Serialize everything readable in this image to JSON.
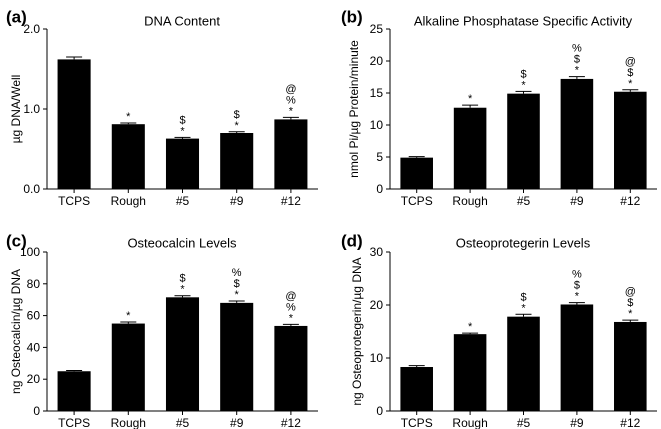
{
  "chart_data": [
    {
      "type": "bar",
      "panel_label": "(a)",
      "title": "DNA Content",
      "ylabel": "µg DNA/Well",
      "xlabel": "",
      "categories": [
        "TCPS",
        "Rough",
        "#5",
        "#9",
        "#12"
      ],
      "values": [
        1.62,
        0.81,
        0.63,
        0.7,
        0.87
      ],
      "errors": [
        0.03,
        0.015,
        0.015,
        0.015,
        0.025
      ],
      "ylim": [
        0,
        2.0
      ],
      "yticks": [
        "0.0",
        "1.0",
        "2.0"
      ],
      "ytick_values": [
        0,
        1,
        2
      ],
      "significance": [
        [],
        [
          "*"
        ],
        [
          "$",
          "*"
        ],
        [
          "$",
          "*"
        ],
        [
          "@",
          "%",
          "*"
        ]
      ]
    },
    {
      "type": "bar",
      "panel_label": "(b)",
      "title": "Alkaline Phosphatase Specific Activity",
      "ylabel": "nmol Pi/µg Protein/minute",
      "xlabel": "",
      "categories": [
        "TCPS",
        "Rough",
        "#5",
        "#9",
        "#12"
      ],
      "values": [
        4.9,
        12.7,
        14.9,
        17.2,
        15.2
      ],
      "errors": [
        0.15,
        0.4,
        0.35,
        0.35,
        0.3
      ],
      "ylim": [
        0,
        25
      ],
      "yticks": [
        "0",
        "5",
        "10",
        "15",
        "20",
        "25"
      ],
      "ytick_values": [
        0,
        5,
        10,
        15,
        20,
        25
      ],
      "significance": [
        [],
        [
          "*"
        ],
        [
          "$",
          "*"
        ],
        [
          "%",
          "$",
          "*"
        ],
        [
          "@",
          "$",
          "*"
        ]
      ]
    },
    {
      "type": "bar",
      "panel_label": "(c)",
      "title": "Osteocalcin Levels",
      "ylabel": "ng Osteocalcin/µg DNA",
      "xlabel": "",
      "categories": [
        "TCPS",
        "Rough",
        "#5",
        "#9",
        "#12"
      ],
      "values": [
        25,
        55,
        71.5,
        68,
        53.5
      ],
      "errors": [
        0.5,
        1.0,
        1.0,
        1.2,
        1.0
      ],
      "ylim": [
        0,
        100
      ],
      "yticks": [
        "0",
        "20",
        "40",
        "60",
        "80",
        "100"
      ],
      "ytick_values": [
        0,
        20,
        40,
        60,
        80,
        100
      ],
      "significance": [
        [],
        [
          "*"
        ],
        [
          "$",
          "*"
        ],
        [
          "%",
          "$",
          "*"
        ],
        [
          "@",
          "%",
          "*"
        ]
      ]
    },
    {
      "type": "bar",
      "panel_label": "(d)",
      "title": "Osteoprotegerin Levels",
      "ylabel": "ng Osteoprotegerin/µg DNA",
      "xlabel": "",
      "categories": [
        "TCPS",
        "Rough",
        "#5",
        "#9",
        "#12"
      ],
      "values": [
        8.3,
        14.5,
        17.8,
        20.1,
        16.8
      ],
      "errors": [
        0.25,
        0.2,
        0.45,
        0.35,
        0.35
      ],
      "ylim": [
        0,
        30
      ],
      "yticks": [
        "0",
        "10",
        "20",
        "30"
      ],
      "ytick_values": [
        0,
        10,
        20,
        30
      ],
      "significance": [
        [],
        [
          "*"
        ],
        [
          "$",
          "*"
        ],
        [
          "%",
          "$",
          "*"
        ],
        [
          "@",
          "$",
          "*"
        ]
      ]
    }
  ],
  "colors": {
    "bar": "#000000",
    "axis": "#000000",
    "background": "#ffffff"
  }
}
